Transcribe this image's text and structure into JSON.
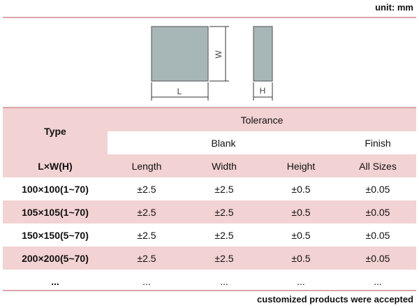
{
  "unit_label": "unit: mm",
  "diagram": {
    "length_label": "L",
    "width_label": "W",
    "height_label": "H",
    "block_color": "#a7b6b6"
  },
  "table": {
    "type_header": "Type",
    "tolerance_header": "Tolerance",
    "blank_header": "Blank",
    "finish_header": "Finish",
    "dims_header": "L×W(H)",
    "col_headers": [
      "Length",
      "Width",
      "Height",
      "All Sizes"
    ],
    "rows": [
      {
        "type": "100×100(1~70)",
        "length": "±2.5",
        "width": "±2.5",
        "height": "±0.5",
        "all": "±0.05"
      },
      {
        "type": "105×105(1~70)",
        "length": "±2.5",
        "width": "±2.5",
        "height": "±0.5",
        "all": "±0.05"
      },
      {
        "type": "150×150(5~70)",
        "length": "±2.5",
        "width": "±2.5",
        "height": "±0.5",
        "all": "±0.05"
      },
      {
        "type": "200×200(5~70)",
        "length": "±2.5",
        "width": "±2.5",
        "height": "±0.5",
        "all": "±0.05"
      },
      {
        "type": "...",
        "length": "...",
        "width": "...",
        "height": "...",
        "all": "..."
      }
    ]
  },
  "colors": {
    "header_pink": "#f2d2d2",
    "rule_pink": "#d8a5aa"
  },
  "footer_note": "customized products were accepted"
}
